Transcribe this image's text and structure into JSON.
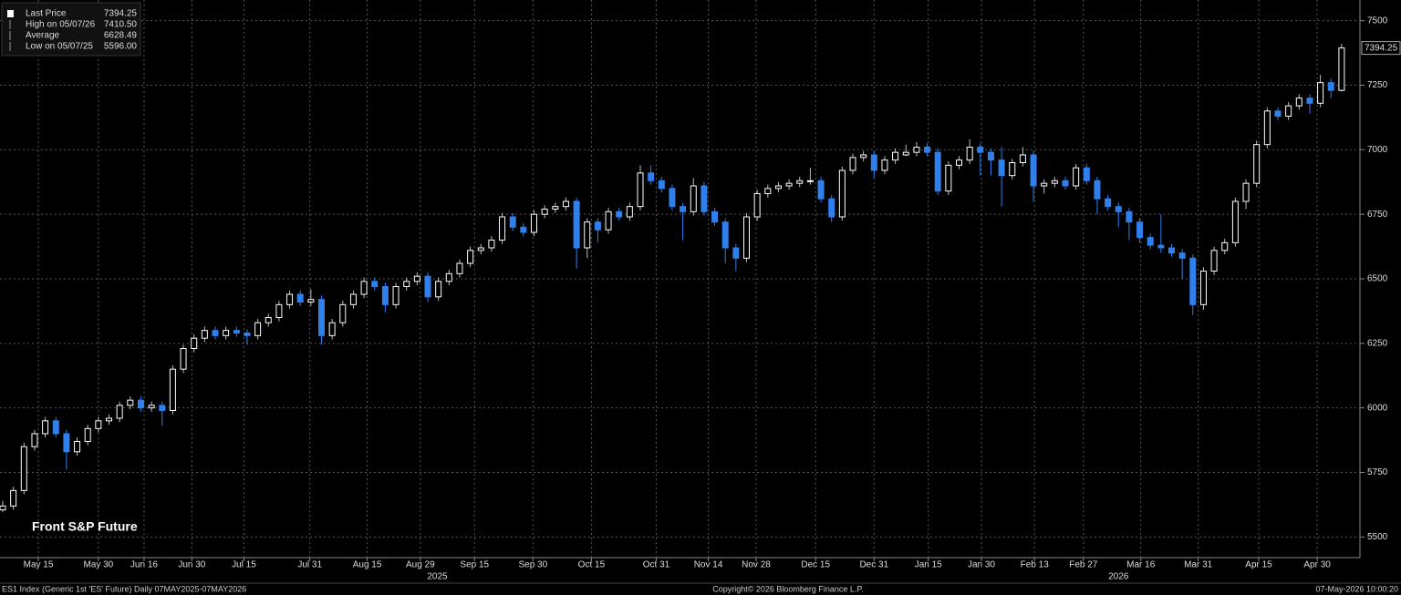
{
  "chart_data": {
    "type": "candlestick",
    "annotation": "Front S&P Future",
    "legend": [
      {
        "name": "Last Price",
        "value": "7394.25"
      },
      {
        "name": "High on 05/07/26",
        "value": "7410.50"
      },
      {
        "name": "Average",
        "value": "6628.49"
      },
      {
        "name": "Low on 05/07/25",
        "value": "5596.00"
      }
    ],
    "open": [
      5605,
      5620,
      5680,
      5850,
      5900,
      5950,
      5900,
      5830,
      5870,
      5920,
      5950,
      5960,
      6010,
      6030,
      6000,
      6010,
      5990,
      6150,
      6230,
      6270,
      6300,
      6280,
      6300,
      6290,
      6280,
      6330,
      6350,
      6400,
      6440,
      6410,
      6420,
      6280,
      6330,
      6400,
      6440,
      6490,
      6470,
      6400,
      6470,
      6490,
      6510,
      6430,
      6490,
      6520,
      6560,
      6610,
      6620,
      6650,
      6740,
      6700,
      6680,
      6750,
      6770,
      6780,
      6800,
      6620,
      6720,
      6690,
      6760,
      6740,
      6780,
      6910,
      6880,
      6850,
      6780,
      6760,
      6860,
      6760,
      6720,
      6620,
      6580,
      6740,
      6830,
      6850,
      6860,
      6870,
      6880,
      6880,
      6810,
      6740,
      6920,
      6970,
      6980,
      6920,
      6960,
      6980,
      6990,
      7010,
      6990,
      6840,
      6940,
      6960,
      7010,
      6990,
      6960,
      6900,
      6950,
      6980,
      6860,
      6870,
      6880,
      6860,
      6930,
      6880,
      6810,
      6780,
      6760,
      6720,
      6660,
      6630,
      6620,
      6600,
      6580,
      6400,
      6530,
      6610,
      6640,
      6800,
      6870,
      7020,
      7150,
      7130,
      7170,
      7200,
      7180,
      7260,
      7230
    ],
    "high": [
      5640,
      5695,
      5865,
      5915,
      5965,
      5965,
      5915,
      5885,
      5935,
      5965,
      5975,
      6025,
      6045,
      6045,
      6025,
      6025,
      6165,
      6245,
      6285,
      6315,
      6315,
      6315,
      6315,
      6305,
      6345,
      6365,
      6415,
      6455,
      6455,
      6460,
      6435,
      6345,
      6415,
      6455,
      6505,
      6505,
      6485,
      6485,
      6505,
      6525,
      6525,
      6505,
      6535,
      6575,
      6625,
      6635,
      6665,
      6755,
      6755,
      6715,
      6765,
      6785,
      6795,
      6815,
      6815,
      6735,
      6735,
      6775,
      6775,
      6795,
      6940,
      6940,
      6895,
      6865,
      6795,
      6890,
      6875,
      6775,
      6735,
      6635,
      6755,
      6845,
      6865,
      6875,
      6885,
      6895,
      6930,
      6895,
      6825,
      6935,
      6985,
      6995,
      6995,
      6975,
      7005,
      7020,
      7030,
      7025,
      7005,
      6955,
      6975,
      7040,
      7025,
      7005,
      7010,
      6965,
      7010,
      6995,
      6885,
      6895,
      6895,
      6945,
      6945,
      6895,
      6825,
      6795,
      6775,
      6735,
      6675,
      6750,
      6635,
      6615,
      6595,
      6545,
      6625,
      6655,
      6815,
      6885,
      7035,
      7165,
      7165,
      7185,
      7215,
      7215,
      7290,
      7275,
      7410.5
    ],
    "low": [
      5596,
      5605,
      5665,
      5835,
      5885,
      5885,
      5760,
      5815,
      5855,
      5905,
      5935,
      5945,
      5995,
      5985,
      5985,
      5930,
      5975,
      6135,
      6215,
      6255,
      6265,
      6265,
      6275,
      6245,
      6265,
      6315,
      6335,
      6385,
      6395,
      6395,
      6245,
      6265,
      6315,
      6385,
      6425,
      6455,
      6370,
      6385,
      6455,
      6475,
      6410,
      6415,
      6475,
      6505,
      6545,
      6595,
      6605,
      6635,
      6685,
      6665,
      6665,
      6735,
      6755,
      6765,
      6540,
      6580,
      6640,
      6675,
      6725,
      6725,
      6765,
      6865,
      6835,
      6765,
      6650,
      6745,
      6745,
      6705,
      6560,
      6530,
      6565,
      6725,
      6815,
      6835,
      6845,
      6855,
      6865,
      6795,
      6720,
      6725,
      6905,
      6955,
      6890,
      6905,
      6945,
      6975,
      6975,
      6975,
      6825,
      6825,
      6925,
      6945,
      6900,
      6900,
      6780,
      6885,
      6935,
      6800,
      6830,
      6855,
      6845,
      6845,
      6865,
      6750,
      6765,
      6700,
      6650,
      6640,
      6615,
      6600,
      6585,
      6500,
      6360,
      6380,
      6515,
      6595,
      6625,
      6770,
      6855,
      7005,
      7115,
      7115,
      7155,
      7140,
      7165,
      7200,
      7225
    ],
    "close": [
      5620,
      5680,
      5850,
      5900,
      5950,
      5900,
      5830,
      5870,
      5920,
      5950,
      5960,
      6010,
      6030,
      6000,
      6010,
      5990,
      6150,
      6230,
      6270,
      6300,
      6280,
      6300,
      6290,
      6280,
      6330,
      6350,
      6400,
      6440,
      6410,
      6420,
      6280,
      6330,
      6400,
      6440,
      6490,
      6470,
      6400,
      6470,
      6490,
      6510,
      6430,
      6490,
      6520,
      6560,
      6610,
      6620,
      6650,
      6740,
      6700,
      6680,
      6750,
      6770,
      6780,
      6800,
      6620,
      6720,
      6690,
      6760,
      6740,
      6780,
      6910,
      6880,
      6850,
      6780,
      6760,
      6860,
      6760,
      6720,
      6620,
      6580,
      6740,
      6830,
      6850,
      6860,
      6870,
      6880,
      6880,
      6810,
      6740,
      6920,
      6970,
      6980,
      6920,
      6960,
      6990,
      6990,
      7010,
      6990,
      6840,
      6940,
      6960,
      7010,
      6990,
      6960,
      6900,
      6950,
      6980,
      6860,
      6870,
      6880,
      6860,
      6930,
      6880,
      6810,
      6780,
      6760,
      6720,
      6660,
      6630,
      6620,
      6600,
      6580,
      6400,
      6530,
      6610,
      6640,
      6800,
      6870,
      7020,
      7150,
      7130,
      7170,
      7200,
      7180,
      7260,
      7230,
      7394.25
    ],
    "up_color": "#ffffff",
    "down_color": "#2f80ed",
    "ylim": [
      5420,
      7580
    ],
    "yticks": [
      5500,
      5750,
      6000,
      6250,
      6500,
      6750,
      7000,
      7250,
      7500
    ],
    "xticks": [
      {
        "value": 3.35,
        "label": "May 15"
      },
      {
        "value": 9.0,
        "label": "May 30"
      },
      {
        "value": 13.3,
        "label": "Jun 16"
      },
      {
        "value": 17.8,
        "label": "Jun 30"
      },
      {
        "value": 22.7,
        "label": "Jul 15"
      },
      {
        "value": 28.9,
        "label": "Jul 31"
      },
      {
        "value": 34.3,
        "label": "Aug 15"
      },
      {
        "value": 39.3,
        "label": "Aug 29"
      },
      {
        "value": 44.4,
        "label": "Sep 15"
      },
      {
        "value": 49.9,
        "label": "Sep 30"
      },
      {
        "value": 55.4,
        "label": "Oct 15"
      },
      {
        "value": 61.5,
        "label": "Oct 31"
      },
      {
        "value": 66.4,
        "label": "Nov 14"
      },
      {
        "value": 70.9,
        "label": "Nov 28"
      },
      {
        "value": 76.5,
        "label": "Dec 15"
      },
      {
        "value": 82.0,
        "label": "Dec 31"
      },
      {
        "value": 87.1,
        "label": "Jan 15"
      },
      {
        "value": 92.1,
        "label": "Jan 30"
      },
      {
        "value": 97.1,
        "label": "Feb 13"
      },
      {
        "value": 101.7,
        "label": "Feb 27"
      },
      {
        "value": 107.1,
        "label": "Mar 16"
      },
      {
        "value": 112.5,
        "label": "Mar 31"
      },
      {
        "value": 118.2,
        "label": "Apr 15"
      },
      {
        "value": 123.7,
        "label": "Apr 30"
      }
    ],
    "year_labels": [
      {
        "value": 40.9,
        "label": "2025"
      },
      {
        "value": 105.0,
        "label": "2026"
      }
    ],
    "grid": true,
    "footer": {
      "left": "ES1 Index (Generic 1st 'ES' Future) Daily 07MAY2025-07MAY2026",
      "center": "Copyright© 2026 Bloomberg Finance L.P.",
      "right": "07-May-2026 10:00:20"
    }
  }
}
